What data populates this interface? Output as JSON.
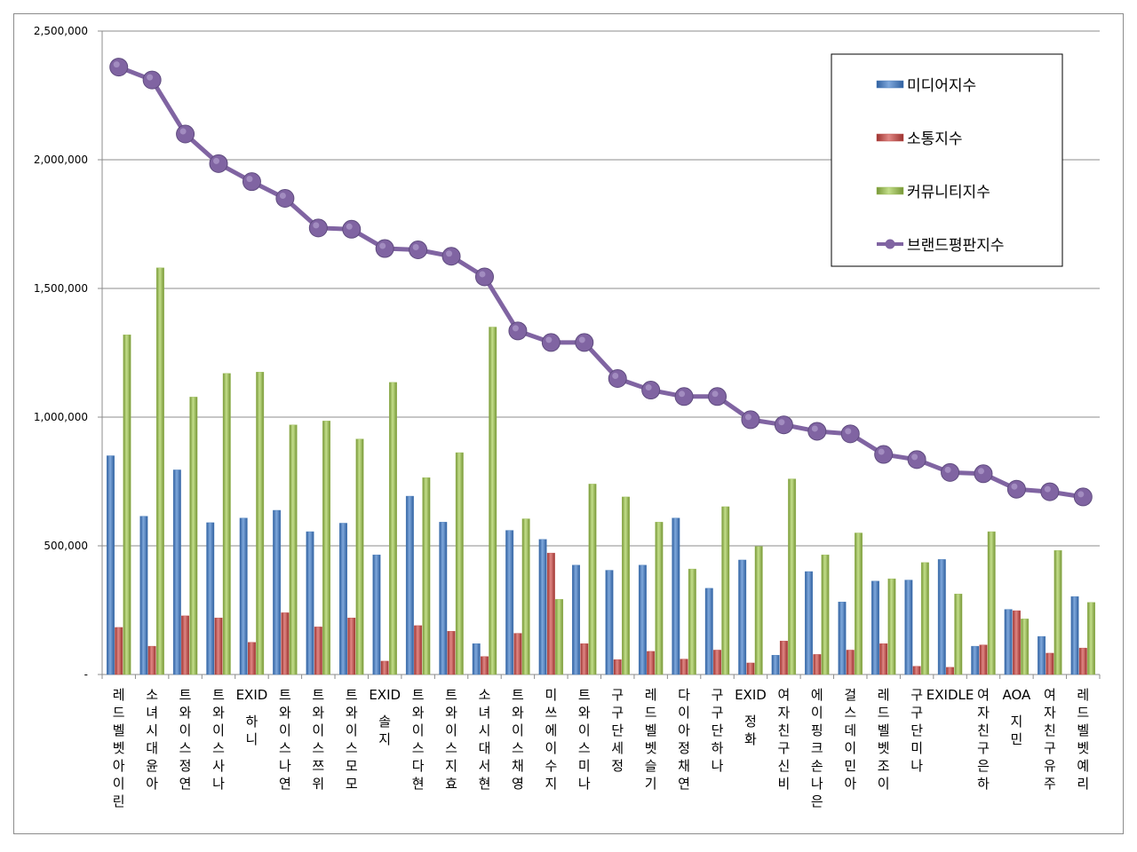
{
  "chart_data": {
    "type": "bar",
    "title": "",
    "xlabel": "",
    "ylabel": "",
    "ylim": [
      0,
      2500000
    ],
    "yticks": [
      0,
      500000,
      1000000,
      1500000,
      2000000,
      2500000
    ],
    "ytick_labels": [
      "-",
      "500,000",
      "1,000,000",
      "1,500,000",
      "2,000,000",
      "2,500,000"
    ],
    "grid": true,
    "legend_position": "top-right",
    "categories": [
      "레드벨벳아이린",
      "소녀시대윤아",
      "트와이스정연",
      "트와이스사나",
      "EXID하니",
      "트와이스나연",
      "트와이스쯔위",
      "트와이스모모",
      "EXID솔지",
      "트와이스다현",
      "트와이스지효",
      "소녀시대서현",
      "트와이스채영",
      "미쓰에이수지",
      "트와이스미나",
      "구구단세정",
      "레드벨벳슬기",
      "다이아정채연",
      "구구단하나",
      "EXID정화",
      "여자친구신비",
      "에이핑크손나은",
      "걸스데이민아",
      "레드벨벳조이",
      "구구단미나",
      "EXIDLE",
      "여자친구은하",
      "AOA지민",
      "여자친구유주",
      "레드벨벳예리"
    ],
    "series": [
      {
        "name": "미디어지수",
        "kind": "bar",
        "color": "#4a7ebb",
        "values": [
          850000,
          615000,
          795000,
          590000,
          608000,
          638000,
          555000,
          588000,
          465000,
          693000,
          592000,
          120000,
          560000,
          525000,
          425000,
          405000,
          425000,
          608000,
          335000,
          445000,
          75000,
          400000,
          282000,
          363000,
          367000,
          447000,
          110000,
          253000,
          148000,
          303000
        ]
      },
      {
        "name": "소통지수",
        "kind": "bar",
        "color": "#c0504d",
        "values": [
          183000,
          110000,
          228000,
          220000,
          125000,
          240000,
          185000,
          220000,
          52000,
          190000,
          168000,
          70000,
          160000,
          472000,
          120000,
          58000,
          90000,
          60000,
          95000,
          45000,
          130000,
          78000,
          95000,
          120000,
          32000,
          28000,
          115000,
          248000,
          83000,
          103000
        ]
      },
      {
        "name": "커뮤니티지수",
        "kind": "bar",
        "color": "#9bbb59",
        "values": [
          1320000,
          1580000,
          1078000,
          1170000,
          1175000,
          970000,
          985000,
          915000,
          1135000,
          765000,
          862000,
          1350000,
          605000,
          292000,
          740000,
          690000,
          592000,
          410000,
          652000,
          498000,
          760000,
          465000,
          550000,
          372000,
          435000,
          313000,
          555000,
          216000,
          482000,
          280000
        ]
      },
      {
        "name": "브랜드평판지수",
        "kind": "line",
        "color": "#8064a2",
        "values": [
          2360000,
          2310000,
          2100000,
          1985000,
          1915000,
          1850000,
          1735000,
          1730000,
          1655000,
          1650000,
          1625000,
          1545000,
          1335000,
          1290000,
          1290000,
          1150000,
          1105000,
          1080000,
          1080000,
          990000,
          970000,
          945000,
          935000,
          855000,
          835000,
          785000,
          780000,
          720000,
          710000,
          690000
        ]
      }
    ]
  }
}
